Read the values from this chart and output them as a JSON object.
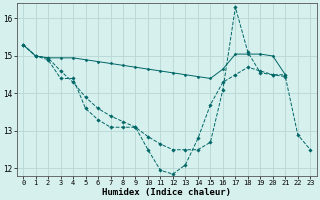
{
  "xlabel": "Humidex (Indice chaleur)",
  "ylabel": "",
  "background_color": "#d6f0ee",
  "grid_color": "#b8d8d4",
  "line_color": "#006666",
  "xlim": [
    -0.5,
    23.5
  ],
  "ylim": [
    11.8,
    16.4
  ],
  "yticks": [
    12,
    13,
    14,
    15,
    16
  ],
  "xticks": [
    0,
    1,
    2,
    3,
    4,
    5,
    6,
    7,
    8,
    9,
    10,
    11,
    12,
    13,
    14,
    15,
    16,
    17,
    18,
    19,
    20,
    21,
    22,
    23
  ],
  "series": [
    {
      "x": [
        0,
        1,
        2,
        3,
        4,
        5,
        6,
        7,
        8,
        9,
        10,
        11,
        12,
        13,
        14,
        15,
        16,
        17,
        18,
        19,
        20,
        21,
        22,
        23
      ],
      "y": [
        15.3,
        15.0,
        14.9,
        14.4,
        14.4,
        13.6,
        13.3,
        13.1,
        13.1,
        13.1,
        12.5,
        11.95,
        11.85,
        12.1,
        12.8,
        13.7,
        14.3,
        14.5,
        14.7,
        14.6,
        14.5,
        14.45,
        12.9,
        12.5
      ],
      "linestyle": "--",
      "marker": "D",
      "markersize": 1.8,
      "linewidth": 0.7
    },
    {
      "x": [
        0,
        1,
        2,
        3,
        4,
        5,
        6,
        7,
        8,
        9,
        10,
        11,
        12,
        13,
        14,
        15,
        16,
        17,
        18,
        19,
        20,
        21
      ],
      "y": [
        15.3,
        15.0,
        14.95,
        14.95,
        14.95,
        14.9,
        14.85,
        14.8,
        14.75,
        14.7,
        14.65,
        14.6,
        14.55,
        14.5,
        14.45,
        14.4,
        14.65,
        15.05,
        15.05,
        15.05,
        15.0,
        14.5
      ],
      "linestyle": "-",
      "marker": "D",
      "markersize": 1.5,
      "linewidth": 0.7
    },
    {
      "x": [
        0,
        1,
        2,
        3,
        4,
        5,
        6,
        7,
        8,
        9,
        10,
        11,
        12,
        13,
        14,
        15,
        16,
        17,
        18,
        19,
        20,
        21
      ],
      "y": [
        15.3,
        15.0,
        14.95,
        14.6,
        14.3,
        13.9,
        13.6,
        13.4,
        13.25,
        13.1,
        12.85,
        12.65,
        12.5,
        12.5,
        12.5,
        12.7,
        14.1,
        16.3,
        15.1,
        14.55,
        14.5,
        14.5
      ],
      "linestyle": "--",
      "marker": "D",
      "markersize": 1.8,
      "linewidth": 0.7
    }
  ]
}
